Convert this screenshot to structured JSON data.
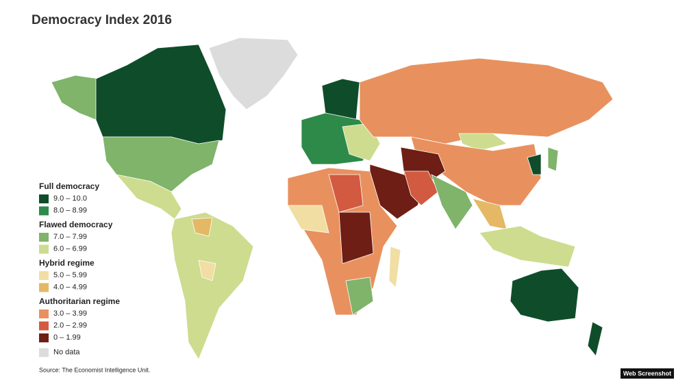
{
  "title": "Democracy Index 2016",
  "legend": {
    "groups": [
      {
        "title": "Full democracy",
        "items": [
          {
            "label": "9.0 – 10.0",
            "color": "#0f4d2a"
          },
          {
            "label": "8.0 – 8.99",
            "color": "#2d8a48"
          }
        ]
      },
      {
        "title": "Flawed democracy",
        "items": [
          {
            "label": "7.0 – 7.99",
            "color": "#7fb46a"
          },
          {
            "label": "6.0 – 6.99",
            "color": "#cddc8e"
          }
        ]
      },
      {
        "title": "Hybrid regime",
        "items": [
          {
            "label": "5.0 – 5.99",
            "color": "#f1dea3"
          },
          {
            "label": "4.0 – 4.99",
            "color": "#e5b865"
          }
        ]
      },
      {
        "title": "Authoritarian regime",
        "items": [
          {
            "label": "3.0 – 3.99",
            "color": "#e8915e"
          },
          {
            "label": "2.0 – 2.99",
            "color": "#d25a40"
          },
          {
            "label": "0 – 1.99",
            "color": "#6e1e14"
          }
        ]
      }
    ],
    "no_data": {
      "label": "No data",
      "color": "#dcdcdc"
    }
  },
  "source": "Source: The Economist Intelligence Unit.",
  "watermark": "Web Screenshot"
}
